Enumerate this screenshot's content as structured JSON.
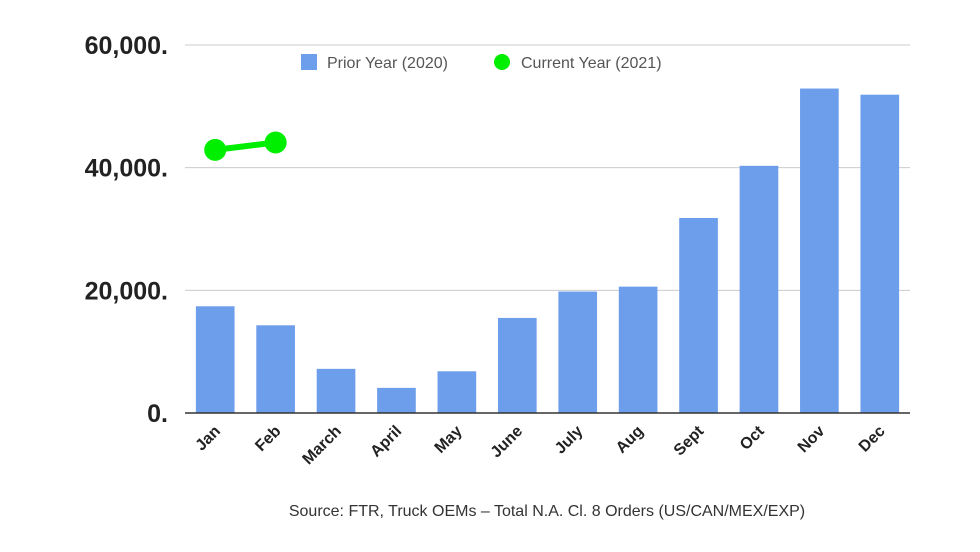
{
  "chart_data": {
    "type": "bar",
    "categories": [
      "Jan",
      "Feb",
      "March",
      "April",
      "May",
      "June",
      "July",
      "Aug",
      "Sept",
      "Oct",
      "Nov",
      "Dec"
    ],
    "series": [
      {
        "name": "Prior Year (2020)",
        "type": "bar",
        "color": "#6d9eeb",
        "values": [
          17400,
          14300,
          7200,
          4100,
          6800,
          15500,
          19800,
          20600,
          31800,
          40300,
          52900,
          51900
        ]
      },
      {
        "name": "Current Year (2021)",
        "type": "line",
        "color": "#00ee00",
        "values": [
          42900,
          44100,
          null,
          null,
          null,
          null,
          null,
          null,
          null,
          null,
          null,
          null
        ]
      }
    ],
    "y_ticks": [
      "0.",
      "20,000.",
      "40,000.",
      "60,000."
    ],
    "y_tick_values": [
      0,
      20000,
      40000,
      60000
    ],
    "ylim": [
      0,
      60000
    ],
    "grid": true,
    "legend_position": "top",
    "source": "Source: FTR, Truck OEMs – Total N.A. Cl. 8 Orders (US/CAN/MEX/EXP)"
  }
}
